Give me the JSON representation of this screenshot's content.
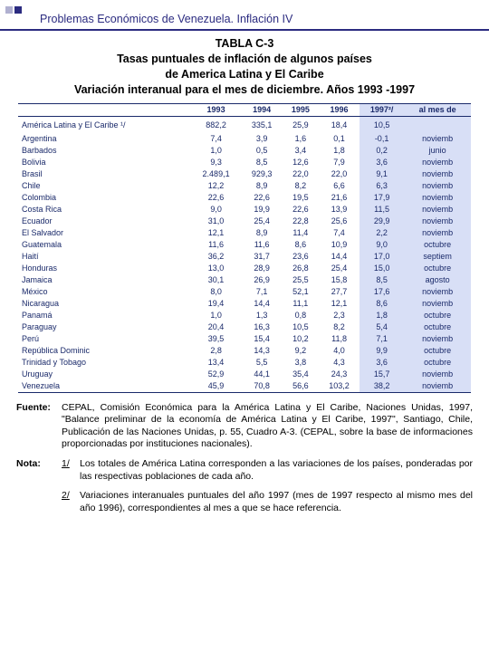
{
  "header": {
    "title": "Problemas Económicos de Venezuela.  Inflación IV"
  },
  "caption": {
    "l1": "TABLA C-3",
    "l2": "Tasas puntuales de inflación de algunos países",
    "l3": "de America Latina y El Caribe",
    "l4": "Variación interanual para el mes de diciembre. Años 1993 -1997"
  },
  "columns": [
    "",
    "1993",
    "1994",
    "1995",
    "1996",
    "1997²/",
    "al mes de"
  ],
  "region": {
    "name": "América Latina y El Caribe ¹/",
    "vals": [
      "882,2",
      "335,1",
      "25,9",
      "18,4",
      "10,5",
      ""
    ]
  },
  "rows": [
    {
      "n": "Argentina",
      "v": [
        "7,4",
        "3,9",
        "1,6",
        "0,1",
        "-0,1",
        "noviemb"
      ]
    },
    {
      "n": "Barbados",
      "v": [
        "1,0",
        "0,5",
        "3,4",
        "1,8",
        "0,2",
        "junio"
      ]
    },
    {
      "n": "Bolivia",
      "v": [
        "9,3",
        "8,5",
        "12,6",
        "7,9",
        "3,6",
        "noviemb"
      ]
    },
    {
      "n": "Brasil",
      "v": [
        "2.489,1",
        "929,3",
        "22,0",
        "22,0",
        "9,1",
        "noviemb"
      ]
    },
    {
      "n": "Chile",
      "v": [
        "12,2",
        "8,9",
        "8,2",
        "6,6",
        "6,3",
        "noviemb"
      ]
    },
    {
      "n": "Colombia",
      "v": [
        "22,6",
        "22,6",
        "19,5",
        "21,6",
        "17,9",
        "noviemb"
      ]
    },
    {
      "n": "Costa Rica",
      "v": [
        "9,0",
        "19,9",
        "22,6",
        "13,9",
        "11,5",
        "noviemb"
      ]
    },
    {
      "n": "Ecuador",
      "v": [
        "31,0",
        "25,4",
        "22,8",
        "25,6",
        "29,9",
        "noviemb"
      ]
    },
    {
      "n": "El Salvador",
      "v": [
        "12,1",
        "8,9",
        "11,4",
        "7,4",
        "2,2",
        "noviemb"
      ]
    },
    {
      "n": "Guatemala",
      "v": [
        "11,6",
        "11,6",
        "8,6",
        "10,9",
        "9,0",
        "octubre"
      ]
    },
    {
      "n": "Haití",
      "v": [
        "36,2",
        "31,7",
        "23,6",
        "14,4",
        "17,0",
        "septiem"
      ]
    },
    {
      "n": "Honduras",
      "v": [
        "13,0",
        "28,9",
        "26,8",
        "25,4",
        "15,0",
        "octubre"
      ]
    },
    {
      "n": "Jamaica",
      "v": [
        "30,1",
        "26,9",
        "25,5",
        "15,8",
        "8,5",
        "agosto"
      ]
    },
    {
      "n": "México",
      "v": [
        "8,0",
        "7,1",
        "52,1",
        "27,7",
        "17,6",
        "noviemb"
      ]
    },
    {
      "n": "Nicaragua",
      "v": [
        "19,4",
        "14,4",
        "11,1",
        "12,1",
        "8,6",
        "noviemb"
      ]
    },
    {
      "n": "Panamá",
      "v": [
        "1,0",
        "1,3",
        "0,8",
        "2,3",
        "1,8",
        "octubre"
      ]
    },
    {
      "n": "Paraguay",
      "v": [
        "20,4",
        "16,3",
        "10,5",
        "8,2",
        "5,4",
        "octubre"
      ]
    },
    {
      "n": "Perú",
      "v": [
        "39,5",
        "15,4",
        "10,2",
        "11,8",
        "7,1",
        "noviemb"
      ]
    },
    {
      "n": "República Dominic",
      "v": [
        "2,8",
        "14,3",
        "9,2",
        "4,0",
        "9,9",
        "octubre"
      ]
    },
    {
      "n": "Trinidad y Tobago",
      "v": [
        "13,4",
        "5,5",
        "3,8",
        "4,3",
        "3,6",
        "octubre"
      ]
    },
    {
      "n": "Uruguay",
      "v": [
        "52,9",
        "44,1",
        "35,4",
        "24,3",
        "15,7",
        "noviemb"
      ]
    },
    {
      "n": "Venezuela",
      "v": [
        "45,9",
        "70,8",
        "56,6",
        "103,2",
        "38,2",
        "noviemb"
      ]
    }
  ],
  "footnotes": {
    "fuente_label": "Fuente:",
    "fuente_text": "CEPAL, Comisión Económica para la América Latina y El Caribe, Naciones Unidas, 1997, \"Balance preliminar de la economía de América Latina y El Caribe, 1997\", Santiago, Chile, Publicación de las Naciones Unidas, p. 55, Cuadro A-3. (CEPAL, sobre la base de informaciones proporcionadas por instituciones nacionales).",
    "nota_label": "Nota:",
    "n1_label": "1/",
    "n1_text": "Los totales de América Latina corresponden a las variaciones de los países, ponderadas por las respectivas poblaciones de cada año.",
    "n2_label": "2/",
    "n2_text": "Variaciones interanuales puntuales del año 1997 (mes de 1997 respecto al mismo mes del año 1996), correspondientes al mes a que se hace referencia."
  },
  "colors": {
    "accent": "#1a2a6a",
    "highlight": "#d8dff6",
    "header_rule": "#2b2b80"
  }
}
